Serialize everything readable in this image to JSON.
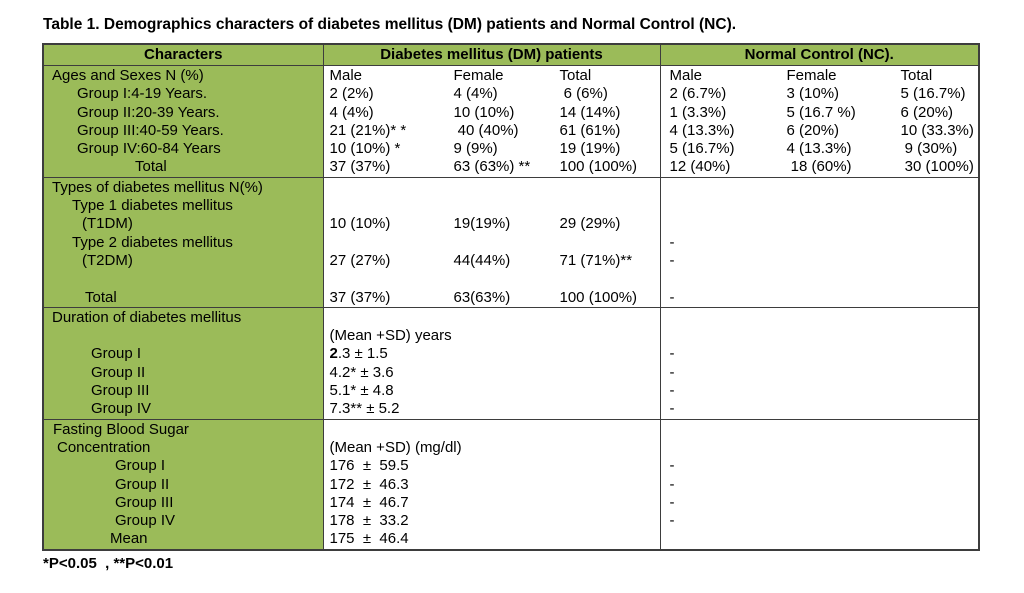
{
  "title": "Table 1. Demographics characters of diabetes mellitus (DM) patients and Normal Control (NC).",
  "footnote": "*P<0.05  , **P<0.01",
  "colors": {
    "header_green": "#9bbb59",
    "border": "#3d3d3d"
  },
  "table": {
    "headers": [
      "Characters",
      "Diabetes mellitus (DM) patients",
      "Normal Control (NC)."
    ],
    "sections": [
      {
        "id": "ages-and-sexes",
        "labels": [
          {
            "text": "Ages and Sexes N (%)",
            "indent": 8
          },
          {
            "text": "Group I:4-19 Years.",
            "indent": 33
          },
          {
            "text": "Group II:20-39 Years.",
            "indent": 33
          },
          {
            "text": "Group III:40-59 Years.",
            "indent": 33
          },
          {
            "text": "Group IV:60-84 Years",
            "indent": 33
          },
          {
            "text": "Total",
            "indent": 91
          }
        ],
        "dm": [
          [
            "Male",
            "Female",
            "Total"
          ],
          [
            "2 (2%)",
            "4 (4%)",
            " 6 (6%)"
          ],
          [
            "4 (4%)",
            "10 (10%)",
            "14 (14%)"
          ],
          [
            "21 (21%)* *",
            " 40 (40%)",
            "61 (61%)"
          ],
          [
            "10 (10%) *",
            "9 (9%)",
            "19 (19%)"
          ],
          [
            "37 (37%)",
            "63 (63%) **",
            "100 (100%)"
          ]
        ],
        "nc": [
          [
            "Male",
            "Female",
            "Total"
          ],
          [
            "2 (6.7%)",
            "3 (10%)",
            "5 (16.7%)"
          ],
          [
            "1 (3.3%)",
            "5 (16.7 %)",
            "6 (20%)"
          ],
          [
            "4 (13.3%)",
            "6 (20%)",
            "10 (33.3%)"
          ],
          [
            "5 (16.7%)",
            "4 (13.3%)",
            " 9 (30%)"
          ],
          [
            "12 (40%)",
            " 18 (60%)",
            " 30 (100%)"
          ]
        ]
      },
      {
        "id": "types-of-diabetes",
        "labels": [
          {
            "text": "Types of diabetes mellitus N(%)",
            "indent": 8
          },
          {
            "text": "Type 1 diabetes mellitus",
            "indent": 28
          },
          {
            "text": "(T1DM)",
            "indent": 38
          },
          {
            "text": "Type 2 diabetes mellitus",
            "indent": 28
          },
          {
            "text": "(T2DM)",
            "indent": 38
          },
          {
            "text": "",
            "indent": 0
          },
          {
            "text": "Total",
            "indent": 41
          }
        ],
        "dm": [
          "",
          "",
          [
            "10 (10%)",
            "19(19%)",
            "29 (29%)"
          ],
          "",
          [
            "27 (27%)",
            "44(44%)",
            "71 (71%)**"
          ],
          "",
          [
            "37 (37%)",
            "63(63%)",
            "100 (100%)"
          ]
        ],
        "nc": [
          "",
          "",
          "",
          [
            "-"
          ],
          [
            "-"
          ],
          "",
          [
            "-"
          ]
        ]
      },
      {
        "id": "duration-of-diabetes",
        "labels": [
          {
            "text": "Duration of diabetes mellitus",
            "indent": 8
          },
          {
            "text": "",
            "indent": 0
          },
          {
            "text": "Group I",
            "indent": 47
          },
          {
            "text": "Group II",
            "indent": 47
          },
          {
            "text": "Group III",
            "indent": 47
          },
          {
            "text": "Group IV",
            "indent": 47
          }
        ],
        "dm": [
          "",
          [
            "(Mean +SD) years"
          ],
          [
            {
              "b": "2",
              "t": ".3 ± 1.5"
            }
          ],
          [
            "4.2* ± 3.6"
          ],
          [
            "5.1* ± 4.8"
          ],
          [
            "7.3** ± 5.2"
          ]
        ],
        "nc": [
          "",
          "",
          [
            "-"
          ],
          [
            "-"
          ],
          [
            "-"
          ],
          [
            "-"
          ]
        ]
      },
      {
        "id": "fasting-blood-sugar",
        "labels": [
          {
            "text": "Fasting Blood Sugar",
            "indent": 9
          },
          {
            "text": "Concentration",
            "indent": 13
          },
          {
            "text": "Group I",
            "indent": 71
          },
          {
            "text": "Group II",
            "indent": 71
          },
          {
            "text": "Group III",
            "indent": 71
          },
          {
            "text": "Group IV",
            "indent": 71
          },
          {
            "text": "Mean",
            "indent": 66
          }
        ],
        "dm": [
          "",
          [
            "(Mean +SD) (mg/dl)"
          ],
          [
            "176  ±  59.5"
          ],
          [
            "172  ±  46.3"
          ],
          [
            "174  ±  46.7"
          ],
          [
            "178  ±  33.2"
          ],
          [
            "175  ±  46.4"
          ]
        ],
        "nc": [
          "",
          "",
          [
            "-"
          ],
          [
            "-"
          ],
          [
            "-"
          ],
          [
            "-"
          ],
          ""
        ]
      }
    ]
  }
}
